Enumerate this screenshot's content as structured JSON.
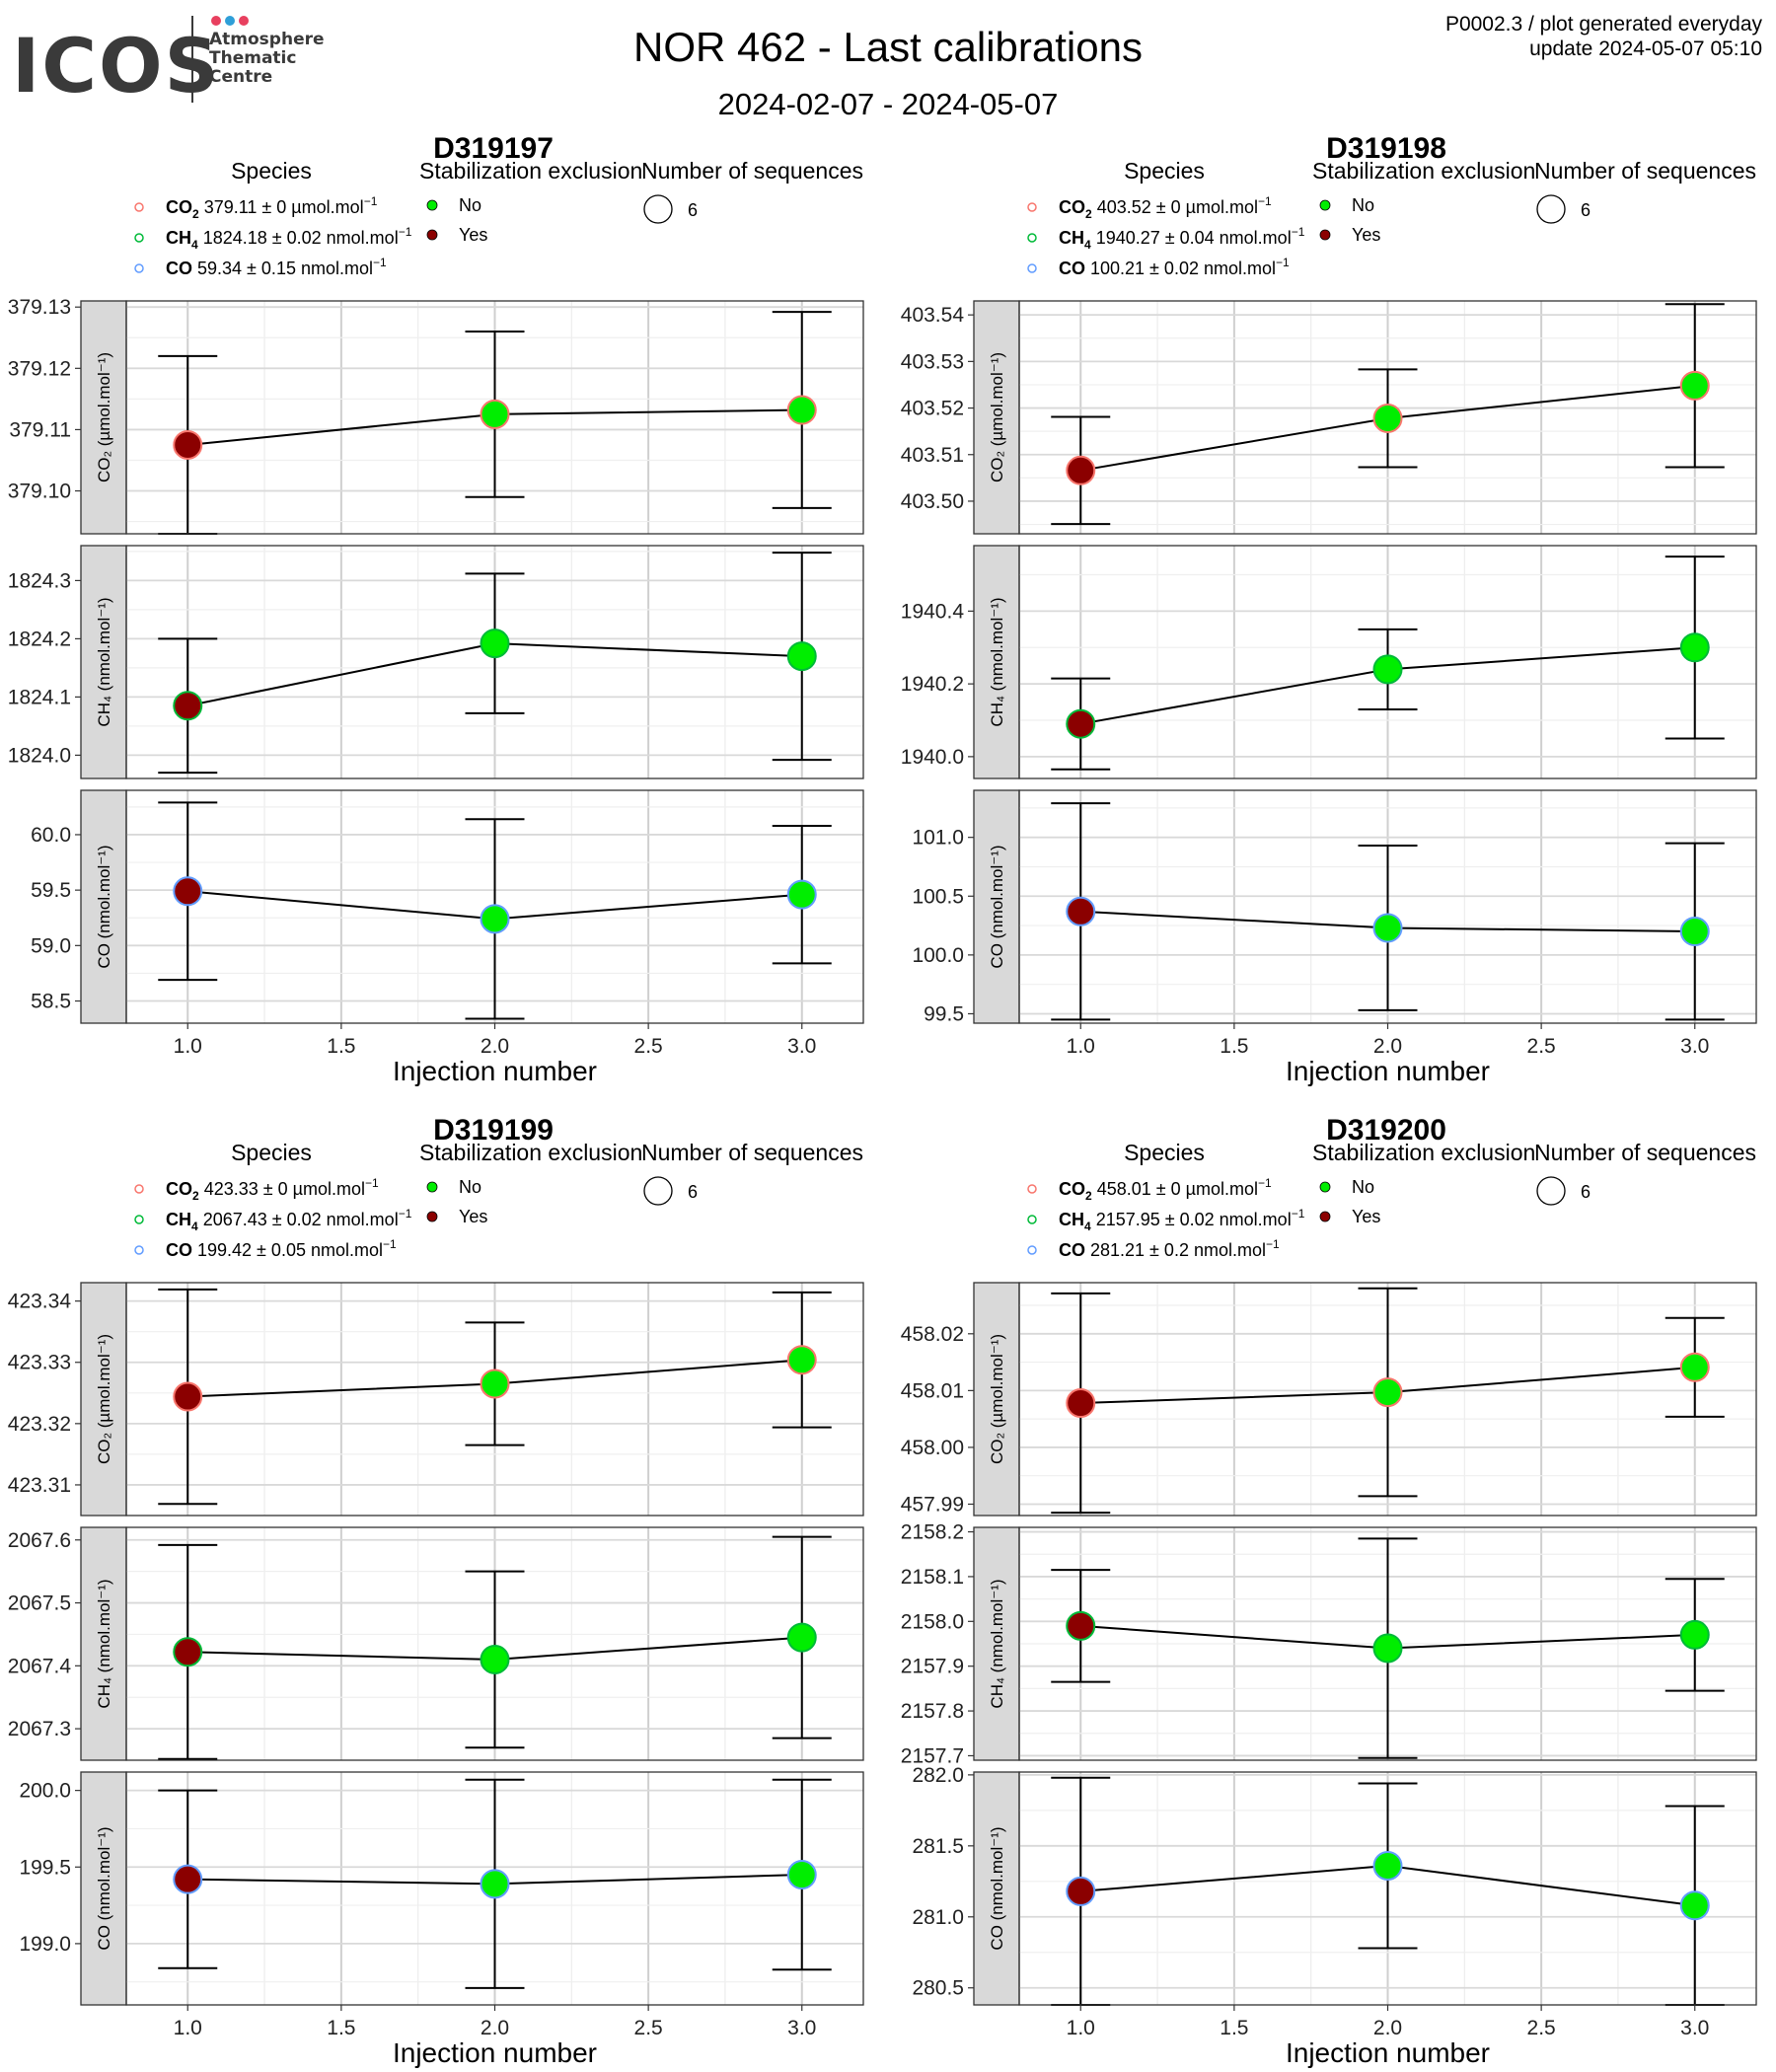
{
  "header": {
    "logo_text": "ICOS",
    "logo_sub": [
      "Atmosphere",
      "Thematic",
      "Centre"
    ],
    "logo_dot_colors": [
      "#e8405f",
      "#2f9fd8",
      "#e8405f"
    ],
    "title": "NOR 462 - Last calibrations",
    "subtitle": "2024-02-07 - 2024-05-07",
    "meta_line1": "P0002.3 / plot generated everyday",
    "meta_line2": "update  2024-05-07 05:10"
  },
  "legend_titles": {
    "species": "Species",
    "stabilization": "Stabilization exclusion",
    "sequences": "Number of sequences"
  },
  "stabilization_options": [
    {
      "label": "No",
      "color": "#00ee00"
    },
    {
      "label": "Yes",
      "color": "#8b0000"
    }
  ],
  "sequences_value": "6",
  "species_colors": {
    "CO2": "#f8766d",
    "CH4": "#00ba38",
    "CO": "#619cff"
  },
  "chart_data": [
    {
      "type": "scatter",
      "title": "D319197",
      "xlabel": "Injection number",
      "x": [
        1,
        2,
        3
      ],
      "xlim": [
        0.8,
        3.2
      ],
      "xticks": [
        "1.0",
        "1.5",
        "2.0",
        "2.5",
        "3.0"
      ],
      "legend": [
        {
          "species": "CO2",
          "text": "379.11 ± 0 µmol.mol",
          "sup": "−1"
        },
        {
          "species": "CH4",
          "text": "1824.18 ± 0.02 nmol.mol",
          "sup": "−1"
        },
        {
          "species": "CO",
          "text": "59.34 ± 0.15 nmol.mol",
          "sup": "−1"
        }
      ],
      "panels": [
        {
          "species": "CO2",
          "strip": "CO₂ (µmol.mol⁻¹)",
          "ylim": [
            379.093,
            379.131
          ],
          "yticks": [
            379.1,
            379.11,
            379.12,
            379.13
          ],
          "ydec": 2,
          "y": [
            379.1075,
            379.1125,
            379.1132
          ],
          "err": [
            0.0145,
            0.0135,
            0.016
          ],
          "exclusion": [
            "Yes",
            "No",
            "No"
          ]
        },
        {
          "species": "CH4",
          "strip": "CH₄ (nmol.mol⁻¹)",
          "ylim": [
            1823.96,
            1824.36
          ],
          "yticks": [
            1824.0,
            1824.1,
            1824.2,
            1824.3
          ],
          "ydec": 1,
          "y": [
            1824.085,
            1824.192,
            1824.17
          ],
          "err": [
            0.115,
            0.12,
            0.178
          ],
          "exclusion": [
            "Yes",
            "No",
            "No"
          ]
        },
        {
          "species": "CO",
          "strip": "CO (nmol.mol⁻¹)",
          "ylim": [
            58.3,
            60.4
          ],
          "yticks": [
            58.5,
            59.0,
            59.5,
            60.0
          ],
          "ydec": 1,
          "y": [
            59.49,
            59.24,
            59.46
          ],
          "err": [
            0.8,
            0.9,
            0.62
          ],
          "exclusion": [
            "Yes",
            "No",
            "No"
          ]
        }
      ]
    },
    {
      "type": "scatter",
      "title": "D319198",
      "xlabel": "Injection number",
      "x": [
        1,
        2,
        3
      ],
      "xlim": [
        0.8,
        3.2
      ],
      "xticks": [
        "1.0",
        "1.5",
        "2.0",
        "2.5",
        "3.0"
      ],
      "legend": [
        {
          "species": "CO2",
          "text": "403.52 ± 0 µmol.mol",
          "sup": "−1"
        },
        {
          "species": "CH4",
          "text": "1940.27 ± 0.04 nmol.mol",
          "sup": "−1"
        },
        {
          "species": "CO",
          "text": "100.21 ± 0.02 nmol.mol",
          "sup": "−1"
        }
      ],
      "panels": [
        {
          "species": "CO2",
          "strip": "CO₂ (µmol.mol⁻¹)",
          "ylim": [
            403.493,
            403.543
          ],
          "yticks": [
            403.5,
            403.51,
            403.52,
            403.53,
            403.54
          ],
          "ydec": 2,
          "y": [
            403.5066,
            403.5178,
            403.5248
          ],
          "err": [
            0.0115,
            0.0105,
            0.0175
          ],
          "exclusion": [
            "Yes",
            "No",
            "No"
          ]
        },
        {
          "species": "CH4",
          "strip": "CH₄ (nmol.mol⁻¹)",
          "ylim": [
            1939.94,
            1940.58
          ],
          "yticks": [
            1940.0,
            1940.2,
            1940.4
          ],
          "ydec": 1,
          "y": [
            1940.09,
            1940.24,
            1940.3
          ],
          "err": [
            0.125,
            0.11,
            0.25
          ],
          "exclusion": [
            "Yes",
            "No",
            "No"
          ]
        },
        {
          "species": "CO",
          "strip": "CO (nmol.mol⁻¹)",
          "ylim": [
            99.42,
            101.4
          ],
          "yticks": [
            99.5,
            100.0,
            100.5,
            101.0
          ],
          "ydec": 1,
          "y": [
            100.37,
            100.23,
            100.2
          ],
          "err": [
            0.92,
            0.7,
            0.75
          ],
          "exclusion": [
            "Yes",
            "No",
            "No"
          ]
        }
      ]
    },
    {
      "type": "scatter",
      "title": "D319199",
      "xlabel": "Injection number",
      "x": [
        1,
        2,
        3
      ],
      "xlim": [
        0.8,
        3.2
      ],
      "xticks": [
        "1.0",
        "1.5",
        "2.0",
        "2.5",
        "3.0"
      ],
      "legend": [
        {
          "species": "CO2",
          "text": "423.33 ± 0 µmol.mol",
          "sup": "−1"
        },
        {
          "species": "CH4",
          "text": "2067.43 ± 0.02 nmol.mol",
          "sup": "−1"
        },
        {
          "species": "CO",
          "text": "199.42 ± 0.05 nmol.mol",
          "sup": "−1"
        }
      ],
      "panels": [
        {
          "species": "CO2",
          "strip": "CO₂ (µmol.mol⁻¹)",
          "ylim": [
            423.305,
            423.343
          ],
          "yticks": [
            423.31,
            423.32,
            423.33,
            423.34
          ],
          "ydec": 2,
          "y": [
            423.3244,
            423.3265,
            423.3304
          ],
          "err": [
            0.0175,
            0.01,
            0.011
          ],
          "exclusion": [
            "Yes",
            "No",
            "No"
          ]
        },
        {
          "species": "CH4",
          "strip": "CH₄ (nmol.mol⁻¹)",
          "ylim": [
            2067.25,
            2067.62
          ],
          "yticks": [
            2067.3,
            2067.4,
            2067.5,
            2067.6
          ],
          "ydec": 1,
          "y": [
            2067.422,
            2067.41,
            2067.445
          ],
          "err": [
            0.17,
            0.14,
            0.16
          ],
          "exclusion": [
            "Yes",
            "No",
            "No"
          ]
        },
        {
          "species": "CO",
          "strip": "CO (nmol.mol⁻¹)",
          "ylim": [
            198.6,
            200.12
          ],
          "yticks": [
            199.0,
            199.5,
            200.0
          ],
          "ydec": 1,
          "y": [
            199.42,
            199.39,
            199.45
          ],
          "err": [
            0.58,
            0.68,
            0.62
          ],
          "exclusion": [
            "Yes",
            "No",
            "No"
          ]
        }
      ]
    },
    {
      "type": "scatter",
      "title": "D319200",
      "xlabel": "Injection number",
      "x": [
        1,
        2,
        3
      ],
      "xlim": [
        0.8,
        3.2
      ],
      "xticks": [
        "1.0",
        "1.5",
        "2.0",
        "2.5",
        "3.0"
      ],
      "legend": [
        {
          "species": "CO2",
          "text": "458.01 ± 0 µmol.mol",
          "sup": "−1"
        },
        {
          "species": "CH4",
          "text": "2157.95 ± 0.02 nmol.mol",
          "sup": "−1"
        },
        {
          "species": "CO",
          "text": "281.21 ± 0.2 nmol.mol",
          "sup": "−1"
        }
      ],
      "panels": [
        {
          "species": "CO2",
          "strip": "CO₂ (µmol.mol⁻¹)",
          "ylim": [
            457.988,
            458.029
          ],
          "yticks": [
            457.99,
            458.0,
            458.01,
            458.02
          ],
          "ydec": 2,
          "y": [
            458.0078,
            458.0097,
            458.0141
          ],
          "err": [
            0.0193,
            0.0183,
            0.0087
          ],
          "exclusion": [
            "Yes",
            "No",
            "No"
          ]
        },
        {
          "species": "CH4",
          "strip": "CH₄ (nmol.mol⁻¹)",
          "ylim": [
            2157.69,
            2158.21
          ],
          "yticks": [
            2157.7,
            2157.8,
            2157.9,
            2158.0,
            2158.1,
            2158.2
          ],
          "ydec": 1,
          "y": [
            2157.99,
            2157.94,
            2157.97
          ],
          "err": [
            0.125,
            0.245,
            0.125
          ],
          "exclusion": [
            "Yes",
            "No",
            "No"
          ]
        },
        {
          "species": "CO",
          "strip": "CO (nmol.mol⁻¹)",
          "ylim": [
            280.38,
            282.02
          ],
          "yticks": [
            280.5,
            281.0,
            281.5,
            282.0
          ],
          "ydec": 1,
          "y": [
            281.18,
            281.36,
            281.08
          ],
          "err": [
            0.8,
            0.58,
            0.7
          ],
          "exclusion": [
            "Yes",
            "No",
            "No"
          ]
        }
      ]
    }
  ]
}
